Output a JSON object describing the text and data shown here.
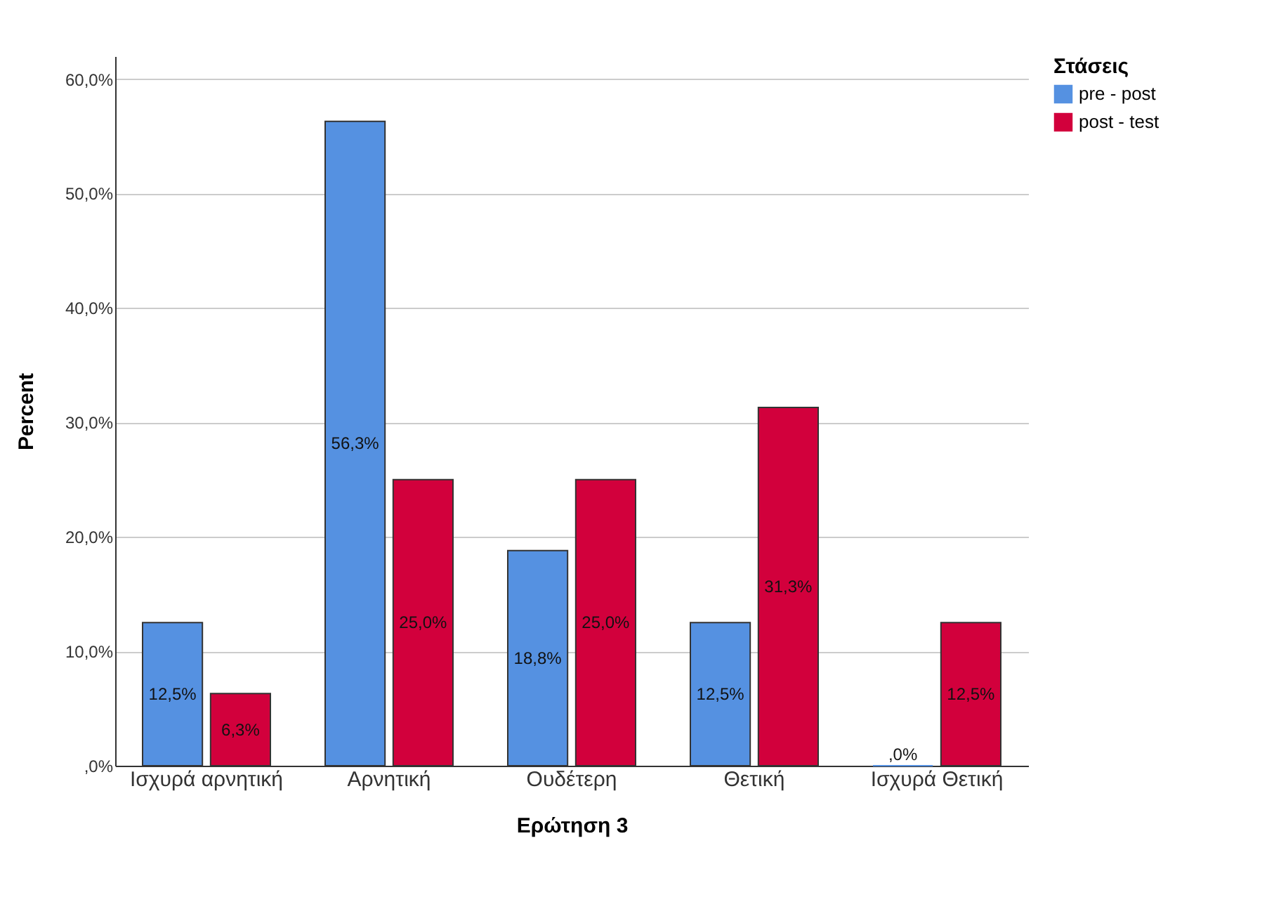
{
  "chart_data": {
    "type": "bar",
    "xlabel": "Ερώτηση 3",
    "ylabel": "Percent",
    "legend_title": "Στάσεις",
    "categories": [
      "Ισχυρά αρνητική",
      "Αρνητική",
      "Ουδέτερη",
      "Θετική",
      "Ισχυρά Θετική"
    ],
    "series": [
      {
        "name": "pre - post",
        "color": "#5591e1",
        "values": [
          12.5,
          56.3,
          18.8,
          12.5,
          0
        ],
        "value_labels": [
          "12,5%",
          "56,3%",
          "18,8%",
          "12,5%",
          ",0%"
        ]
      },
      {
        "name": "post - test",
        "color": "#d2003c",
        "values": [
          6.3,
          25.0,
          25.0,
          31.3,
          12.5
        ],
        "value_labels": [
          "6,3%",
          "25,0%",
          "25,0%",
          "31,3%",
          "12,5%"
        ]
      }
    ],
    "ylim": [
      0,
      62
    ],
    "yticks": [
      {
        "value": 0,
        "label": ",0%"
      },
      {
        "value": 10,
        "label": "10,0%"
      },
      {
        "value": 20,
        "label": "20,0%"
      },
      {
        "value": 30,
        "label": "30,0%"
      },
      {
        "value": 40,
        "label": "40,0%"
      },
      {
        "value": 50,
        "label": "50,0%"
      },
      {
        "value": 60,
        "label": "60,0%"
      }
    ],
    "grid": "y",
    "legend": "top right"
  }
}
